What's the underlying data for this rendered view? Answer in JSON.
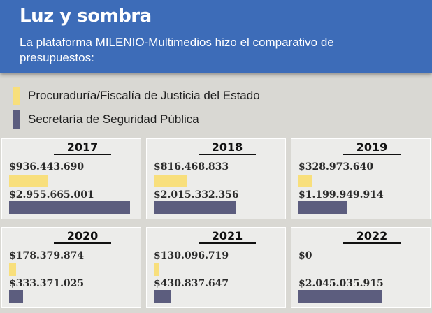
{
  "header": {
    "title": "Luz y sombra",
    "subtitle": "La plataforma MILENIO-Multimedios hizo el comparativo de presupuestos:"
  },
  "colors": {
    "header_bg": "#3d6cb8",
    "series_procuraduria": "#f8df7c",
    "series_seguridad": "#5c5d7e",
    "panel_bg": "#ececea",
    "page_bg": "#d9d8d3"
  },
  "chart_data": {
    "type": "bar",
    "orientation": "horizontal",
    "title": "Luz y sombra",
    "subtitle": "La plataforma MILENIO-Multimedios hizo el comparativo de presupuestos:",
    "legend_position": "top",
    "categories": [
      "2017",
      "2018",
      "2019",
      "2020",
      "2021",
      "2022"
    ],
    "series": [
      {
        "name": "Procuraduría/Fiscalía de Justicia del Estado",
        "color": "#f8df7c",
        "values": [
          936443690,
          816468833,
          328973640,
          178379874,
          130096719,
          0
        ],
        "labels": [
          "$936.443.690",
          "$816.468.833",
          "$328.973.640",
          "$178.379.874",
          "$130.096.719",
          "$0"
        ]
      },
      {
        "name": "Secretaría de Seguridad Pública",
        "color": "#5c5d7e",
        "values": [
          2955665001,
          2015332356,
          1199949914,
          333371025,
          430837647,
          2045035915
        ],
        "labels": [
          "$2.955.665.001",
          "$2.015.332.356",
          "$1.199.949.914",
          "$333.371.025",
          "$430.837.647",
          "$2.045.035.915"
        ]
      }
    ],
    "xlim": [
      0,
      3000000000
    ],
    "grid": false
  }
}
